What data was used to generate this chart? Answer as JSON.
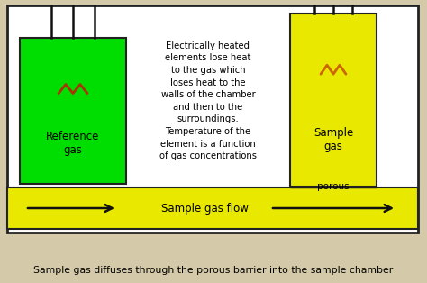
{
  "bg_color": "#d4c9a8",
  "outer_box_color": "#222222",
  "inner_bg": "#ffffff",
  "yellow_color": "#e8e800",
  "green_color": "#00dd00",
  "gray_color": "#b0b0b0",
  "wire_color": "#111111",
  "resistor_color_ref": "#aa3300",
  "resistor_color_samp": "#cc6600",
  "arrow_color": "#111111",
  "text_color": "#000000",
  "flow_bar_color": "#e8e800",
  "description_text": "Electrically heated\nelements lose heat\nto the gas which\nloses heat to the\nwalls of the chamber\nand then to the\nsurroundings.\nTemperature of the\nelement is a function\nof gas concentrations",
  "bottom_text": "Sample gas diffuses through the porous barrier into the sample chamber",
  "flow_text": "Sample gas flow",
  "ref_label": "Reference\ngas",
  "sample_label": "Sample\ngas",
  "porous_label": "porous",
  "fig_w": 4.74,
  "fig_h": 3.14,
  "dpi": 100
}
